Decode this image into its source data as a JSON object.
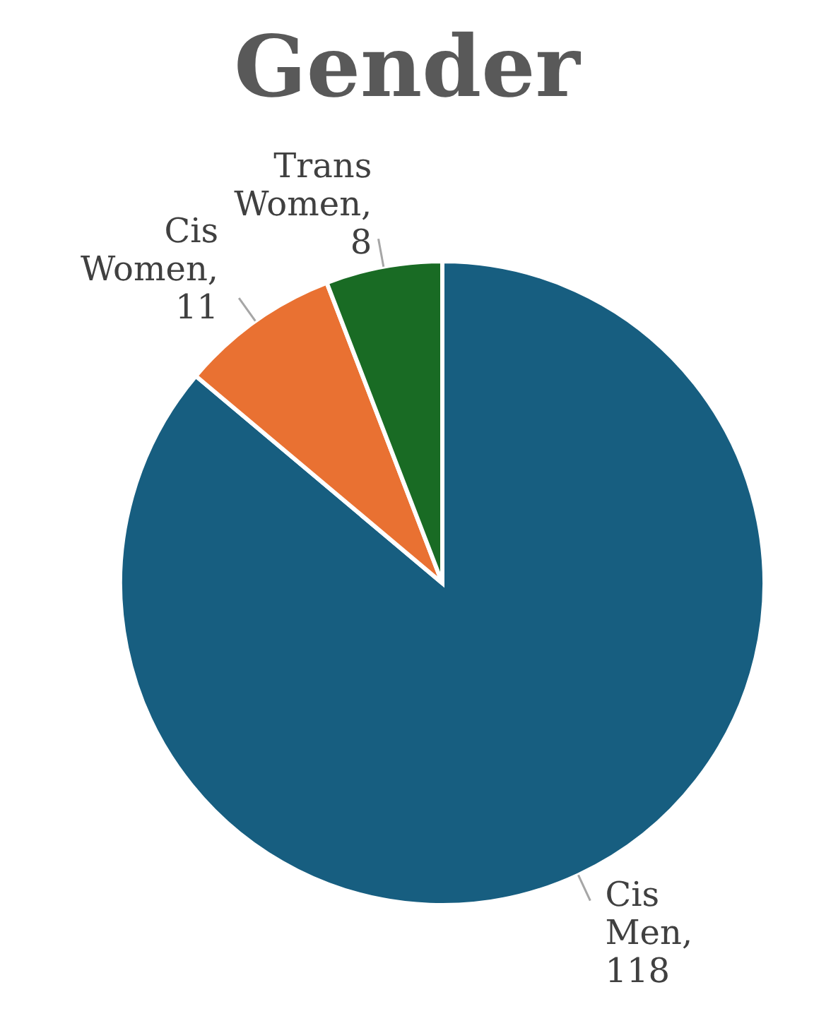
{
  "chart_data": {
    "type": "pie",
    "title": "Gender",
    "categories": [
      "Cis Men",
      "Cis Women",
      "Trans Women"
    ],
    "values": [
      118,
      11,
      8
    ],
    "value_labels": [
      ", 118",
      ", 11",
      ", 8"
    ],
    "colors": [
      "#175e80",
      "#e97132",
      "#196b24"
    ]
  }
}
